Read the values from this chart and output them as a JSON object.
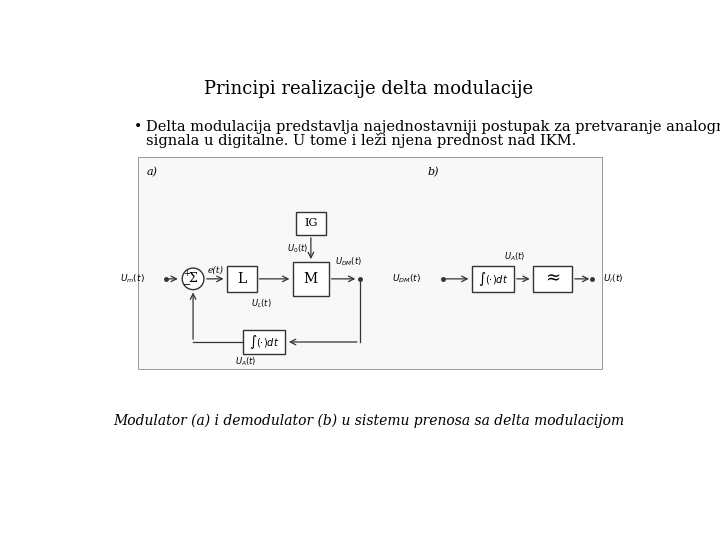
{
  "title": "Principi realizacije delta modulacije",
  "bullet_line1": "Delta modulacija predstavlja najednostavniji postupak za pretvaranje analognih",
  "bullet_line2": "signala u digitalne. U tome i leži njena prednost nad IKM.",
  "caption": "Modulator (a) i demodulator (b) u sistemu prenosa sa delta modulacijom",
  "bg_color": "#ffffff",
  "diagram_bg": "#f8f8f8",
  "title_fontsize": 13,
  "bullet_fontsize": 10.5,
  "caption_fontsize": 10
}
